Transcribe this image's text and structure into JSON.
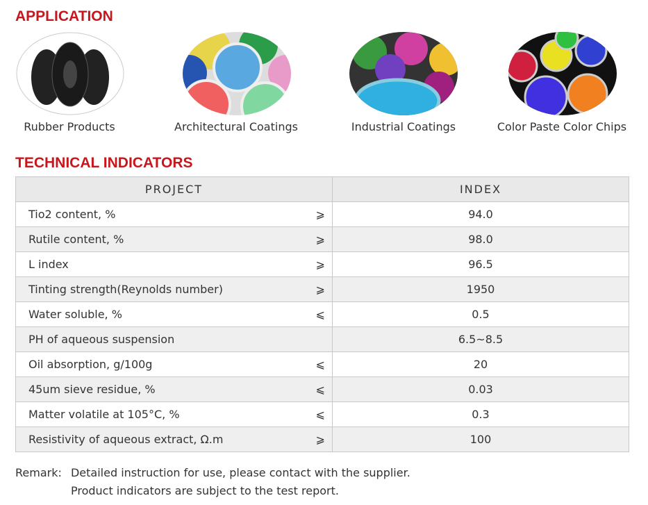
{
  "application": {
    "title": "APPLICATION",
    "items": [
      {
        "label": "Rubber Products"
      },
      {
        "label": "Architectural Coatings"
      },
      {
        "label": "Industrial Coatings"
      },
      {
        "label": "Color Paste Color Chips"
      }
    ]
  },
  "technical": {
    "title": "TECHNICAL INDICATORS",
    "table": {
      "header": [
        "PROJECT",
        "INDEX"
      ],
      "rows": [
        {
          "name": "Tio2 content, %",
          "symbol": "⩾",
          "value": "94.0"
        },
        {
          "name": "Rutile content, %",
          "symbol": "⩾",
          "value": "98.0"
        },
        {
          "name": "L index",
          "symbol": "⩾",
          "value": "96.5"
        },
        {
          "name": "Tinting strength(Reynolds number)",
          "symbol": "⩾",
          "value": "1950"
        },
        {
          "name": "Water soluble, %",
          "symbol": "⩽",
          "value": "0.5"
        },
        {
          "name": "PH of aqueous suspension",
          "value": "6.5~8.5"
        },
        {
          "name": "Oil absorption,  g/100g",
          "symbol": "⩽",
          "value": "20"
        },
        {
          "name": "45um sieve residue, %",
          "symbol": "⩽",
          "value": "0.03"
        },
        {
          "name": "Matter volatile at 105°C, %",
          "symbol": "⩽",
          "value": "0.3"
        },
        {
          "name": "Resistivity of aqueous extract, Ω.m",
          "symbol": "⩾",
          "value": "100"
        }
      ]
    }
  },
  "remark": {
    "label": "Remark:",
    "lines": [
      "Detailed instruction for use, please contact with the supplier.",
      "Product indicators are subject to the test report."
    ]
  }
}
